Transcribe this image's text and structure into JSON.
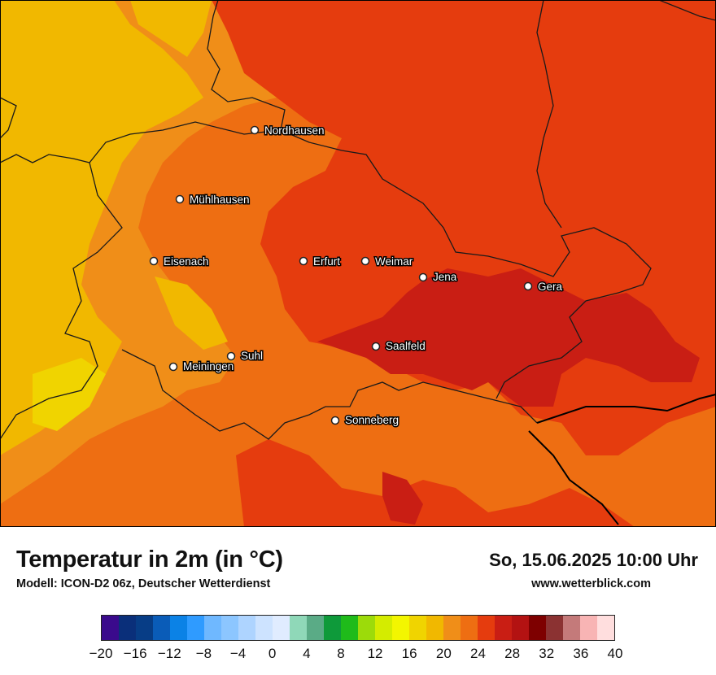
{
  "map": {
    "cities": [
      {
        "name": "Nordhausen",
        "id": "nordhausen"
      },
      {
        "name": "Mühlhausen",
        "id": "muehlhausen"
      },
      {
        "name": "Eisenach",
        "id": "eisenach"
      },
      {
        "name": "Erfurt",
        "id": "erfurt"
      },
      {
        "name": "Weimar",
        "id": "weimar"
      },
      {
        "name": "Jena",
        "id": "jena"
      },
      {
        "name": "Gera",
        "id": "gera"
      },
      {
        "name": "Suhl",
        "id": "suhl"
      },
      {
        "name": "Meiningen",
        "id": "meiningen"
      },
      {
        "name": "Saalfeld",
        "id": "saalfeld"
      },
      {
        "name": "Sonneberg",
        "id": "sonneberg"
      }
    ]
  },
  "footer": {
    "title": "Temperatur in 2m (in °C)",
    "subtitle": "Modell: ICON-D2 06z, Deutscher Wetterdienst",
    "datetime": "So, 15.06.2025 10:00 Uhr",
    "website": "www.wetterblick.com"
  },
  "legend": {
    "tick_labels": [
      "−20",
      "−16",
      "−12",
      "−8",
      "−4",
      "0",
      "4",
      "8",
      "12",
      "16",
      "20",
      "24",
      "28",
      "32",
      "36",
      "40"
    ],
    "colors": [
      "#3a0a8c",
      "#0a2f7a",
      "#073d86",
      "#0a5cb8",
      "#0b82e6",
      "#2f9bff",
      "#6fb8ff",
      "#8cc6ff",
      "#aed4ff",
      "#cde3ff",
      "#e0ecff",
      "#8fd8b8",
      "#5aab86",
      "#0e9a3a",
      "#1fbb1a",
      "#9cdb0a",
      "#d4ec00",
      "#f3f600",
      "#f0d400",
      "#f1b800",
      "#f08e18",
      "#ee6e12",
      "#e53c0e",
      "#c91e14",
      "#b31212",
      "#7e0000",
      "#8b3232",
      "#c47a7a",
      "#f8b4b4",
      "#ffdede"
    ]
  }
}
